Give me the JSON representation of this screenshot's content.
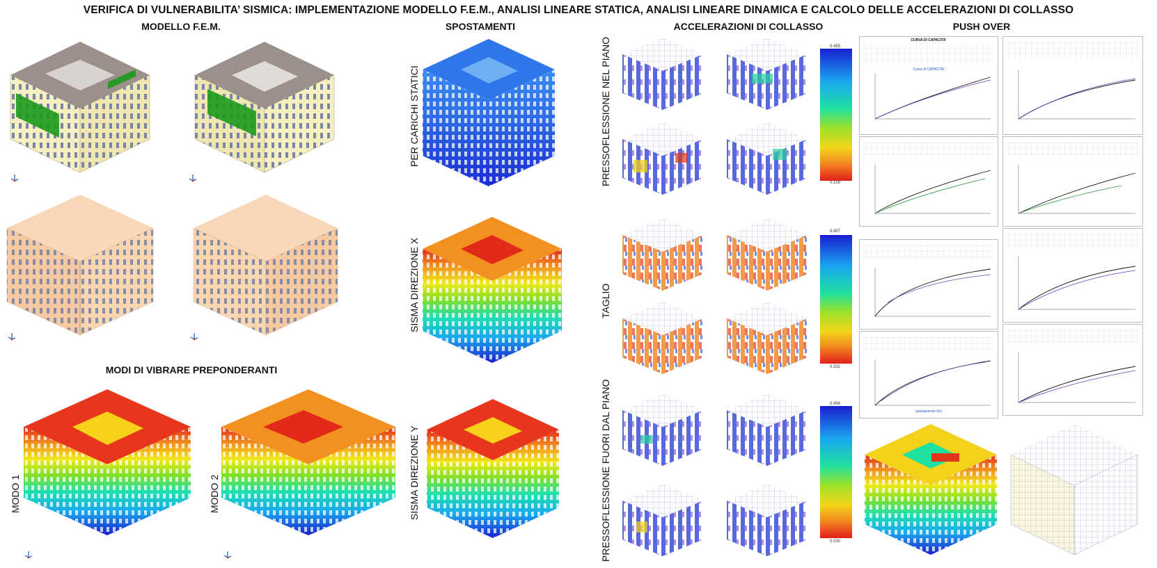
{
  "title": "VERIFICA DI VULNERABILITA’ SISMICA: IMPLEMENTAZIONE MODELLO F.E.M., ANALISI LINEARE STATICA, ANALISI LINEARE DINAMICA E CALCOLO DELLE ACCELERAZIONI DI COLLASSO",
  "sections": {
    "fem": "MODELLO F.E.M.",
    "spostamenti": "SPOSTAMENTI",
    "collasso": "ACCELERAZIONI DI COLLASSO",
    "pushover": "PUSH OVER",
    "modi": "MODI DI VIBRARE PREPONDERANTI"
  },
  "labels": {
    "carichi_statici": "PER CARICHI STATICI",
    "sisma_x": "SISMA DIREZIONE X",
    "sisma_y": "SISMA DIREZIONE Y",
    "modo1": "MODO 1",
    "modo2": "MODO 2",
    "pressoflessione_piano": "PRESSOFLESSIONE NEL PIANO",
    "taglio": "TAGLIO",
    "pressoflessione_fuori": "PRESSOFLESSIONE FUORI DAL PIANO"
  },
  "scales": {
    "s1_top": "0.455",
    "s1_bottom": "0.159",
    "s2_top": "0.457",
    "s2_bottom": "0.332",
    "s3_top": "0.456",
    "s3_bottom": "0.030"
  },
  "pushover_sheet": {
    "header": "CURVA DI CAPACITA'",
    "curve_label": "Curva di CAPACITA'",
    "x_axis": "spostamento (m)"
  },
  "colors": {
    "wall_cream": "#f6efc0",
    "roof_grey": "#9d8f8c",
    "wall_green": "#1c9a1c",
    "transparent_orange": "#f4b882",
    "contour_low": "#1a2dd8",
    "contour_high": "#e8361c"
  }
}
